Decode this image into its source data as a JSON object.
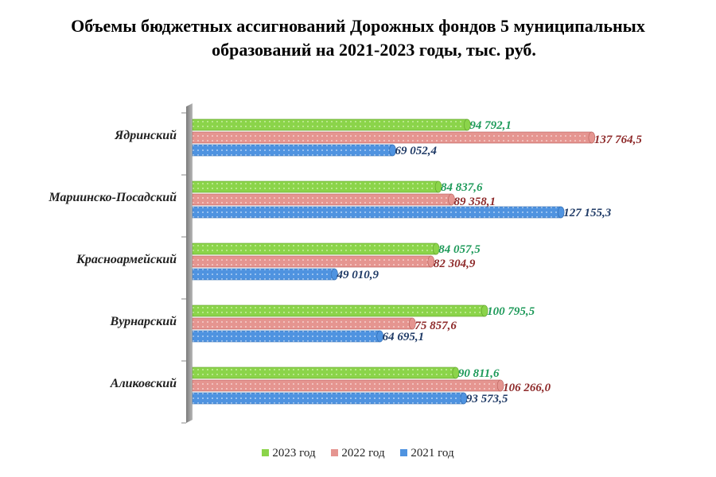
{
  "title_line1": "Объемы бюджетных ассигнований Дорожных фондов 5 муниципальных",
  "title_line2": "образований на 2021-2023 годы, тыс. руб.",
  "chart_data": {
    "type": "bar",
    "orientation": "horizontal",
    "title": "Объемы бюджетных ассигнований Дорожных фондов 5 муниципальных образований на 2021-2023 годы, тыс. руб.",
    "categories": [
      "Ядринский",
      "Мариинско-Посадский",
      "Красноармейский",
      "Вурнарский",
      "Аликовский"
    ],
    "series": [
      {
        "name": "2023 год",
        "color": "#8bd44a",
        "label_color": "#1e9a5a",
        "values": [
          94792.1,
          84837.6,
          84057.5,
          100795.5,
          90811.6
        ],
        "labels": [
          "94 792,1",
          "84 837,6",
          "84 057,5",
          "100 795,5",
          "90 811,6"
        ]
      },
      {
        "name": "2022 год",
        "color": "#e59590",
        "label_color": "#8e2a2a",
        "values": [
          137764.5,
          89358.1,
          82304.9,
          75857.6,
          106266.0
        ],
        "labels": [
          "137 764,5",
          "89 358,1",
          "82 304,9",
          "75 857,6",
          "106 266,0"
        ]
      },
      {
        "name": "2021 год",
        "color": "#4f93e0",
        "label_color": "#1f3a66",
        "values": [
          69052.4,
          127155.3,
          49010.9,
          64695.1,
          93573.5
        ],
        "labels": [
          "69 052,4",
          "127 155,3",
          "49 010,9",
          "64 695,1",
          "93 573,5"
        ]
      }
    ],
    "xlim": [
      0,
      140000
    ],
    "grid": false,
    "legend_position": "bottom"
  }
}
